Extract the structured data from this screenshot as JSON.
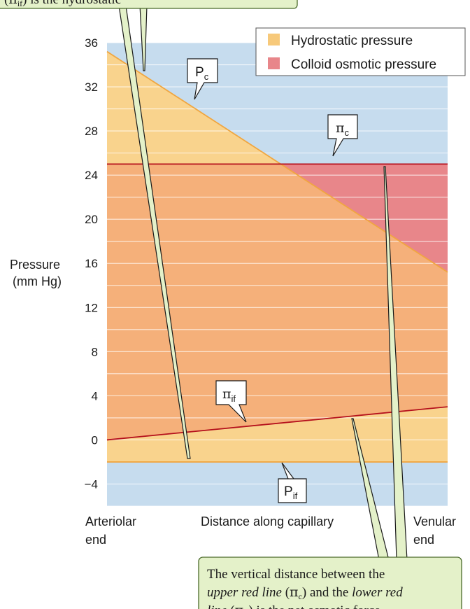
{
  "chart_data": {
    "type": "area",
    "ylabel_line1": "Pressure",
    "ylabel_line2": "(mm Hg)",
    "ylim": [
      -6,
      36
    ],
    "yticks": [
      36,
      32,
      28,
      24,
      20,
      16,
      12,
      8,
      4,
      0,
      -4
    ],
    "ytick_labels": [
      "36",
      "32",
      "28",
      "24",
      "20",
      "16",
      "12",
      "8",
      "4",
      "0",
      "−4"
    ],
    "xlim": [
      0,
      1
    ],
    "x_label_left_line1": "Arteriolar",
    "x_label_left_line2": "end",
    "x_label_center": "Distance along capillary",
    "x_label_right_line1": "Venular",
    "x_label_right_line2": "end",
    "legend": [
      {
        "label": "Hydrostatic pressure",
        "color": "#f7c97a"
      },
      {
        "label": "Colloid osmotic pressure",
        "color": "#e8868a"
      }
    ],
    "series": [
      {
        "key": "Pc",
        "label_main": "P",
        "label_sub": "c",
        "x": [
          0,
          1
        ],
        "y": [
          35.2,
          15.2
        ]
      },
      {
        "key": "pi_c",
        "label_main": "π",
        "label_sub": "c",
        "x": [
          0,
          1
        ],
        "y": [
          25,
          25
        ]
      },
      {
        "key": "pi_if",
        "label_main": "π",
        "label_sub": "if",
        "x": [
          0,
          1
        ],
        "y": [
          0,
          3
        ]
      },
      {
        "key": "Pif",
        "label_main": "P",
        "label_sub": "if",
        "x": [
          0,
          1
        ],
        "y": [
          -2,
          -2
        ]
      }
    ],
    "grid": true,
    "legend_position": "top-right"
  },
  "top_callout_fragment": {
    "open_paren": "(",
    "sym": "π",
    "sub": "if",
    "rest": ") is the hydrostatic"
  },
  "bottom_callout": {
    "line1": "The vertical distance between the",
    "line2_italic": "upper red line",
    "line2_sym": "π",
    "line2_sub": "c",
    "line2_and": "and the",
    "line2_italic2": "lower red",
    "line3_italic": "line",
    "line3_sym": "π",
    "line3_sub": "if",
    "line3_rest": "is the net osmotic force"
  },
  "colors": {
    "background_blue": "#c6dcee",
    "hydrostatic": "#f9d38d",
    "overlap": "#f5b07a",
    "osmotic": "#e8868a",
    "hydro_line": "#f0a640",
    "osmo_line": "#b5101c",
    "callout_fill": "#e4f1c9",
    "callout_stroke": "#4a6a2a"
  }
}
